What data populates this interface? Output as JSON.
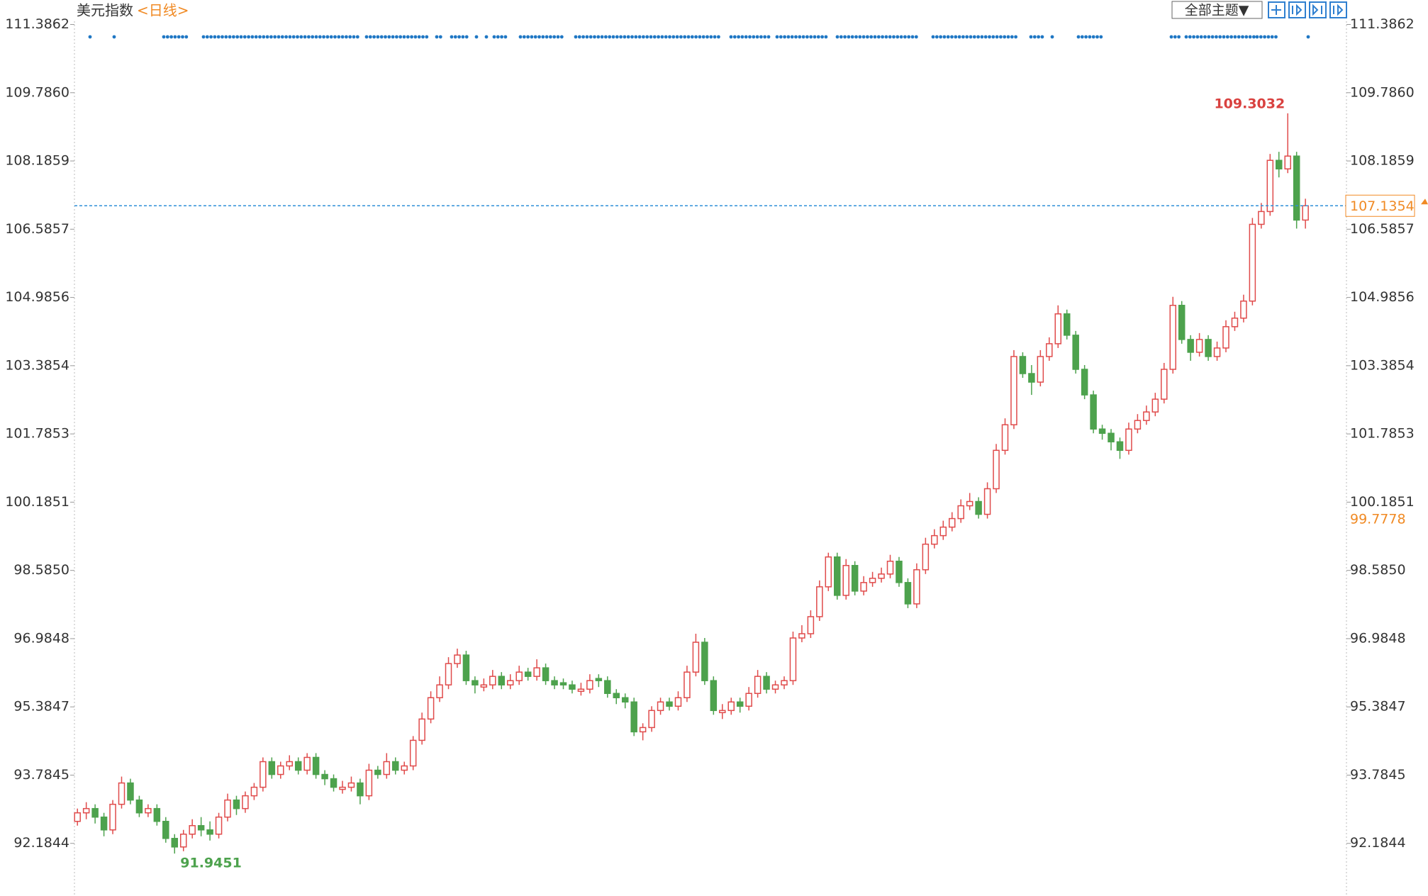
{
  "chart_data": {
    "type": "candlestick",
    "title": "美元指数",
    "period": "<日线>",
    "theme_button": "全部主题▼",
    "up_color": "#e04b4b",
    "down_color": "#4da24d",
    "ylim": [
      90.95,
      111.96
    ],
    "yticks": [
      92.1844,
      93.7845,
      95.3847,
      96.9848,
      98.585,
      {
        "value": 98.585,
        "label": "98.5850"
      },
      100.1851,
      101.7853,
      103.3854,
      104.9856,
      106.5857,
      108.1859,
      {
        "value": 109.786,
        "label": "109.7860"
      },
      111.3862
    ],
    "current_price": 107.1354,
    "reference_price": 99.7778,
    "max_price": 109.3032,
    "min_price": 91.9451,
    "ohlc": [
      [
        92.7,
        93.0,
        92.6,
        92.9
      ],
      [
        92.9,
        93.15,
        92.75,
        93.0
      ],
      [
        93.0,
        93.1,
        92.65,
        92.8
      ],
      [
        92.8,
        92.9,
        92.35,
        92.5
      ],
      [
        92.5,
        93.2,
        92.4,
        93.1
      ],
      [
        93.1,
        93.75,
        93.0,
        93.6
      ],
      [
        93.6,
        93.7,
        93.1,
        93.2
      ],
      [
        93.2,
        93.3,
        92.8,
        92.9
      ],
      [
        92.9,
        93.1,
        92.8,
        93.0
      ],
      [
        93.0,
        93.1,
        92.6,
        92.7
      ],
      [
        92.7,
        92.8,
        92.2,
        92.3
      ],
      [
        92.3,
        92.4,
        91.9451,
        92.1
      ],
      [
        92.1,
        92.5,
        92.0,
        92.4
      ],
      [
        92.4,
        92.75,
        92.3,
        92.6
      ],
      [
        92.6,
        92.8,
        92.35,
        92.5
      ],
      [
        92.5,
        92.7,
        92.25,
        92.4
      ],
      [
        92.4,
        92.9,
        92.3,
        92.8
      ],
      [
        92.8,
        93.35,
        92.7,
        93.2
      ],
      [
        93.2,
        93.3,
        92.85,
        93.0
      ],
      [
        93.0,
        93.4,
        92.9,
        93.3
      ],
      [
        93.3,
        93.6,
        93.2,
        93.5
      ],
      [
        93.5,
        94.2,
        93.4,
        94.1
      ],
      [
        94.1,
        94.2,
        93.7,
        93.8
      ],
      [
        93.8,
        94.1,
        93.7,
        94.0
      ],
      [
        94.0,
        94.25,
        93.9,
        94.1
      ],
      [
        94.1,
        94.2,
        93.8,
        93.9
      ],
      [
        93.9,
        94.3,
        93.8,
        94.2
      ],
      [
        94.2,
        94.3,
        93.7,
        93.8
      ],
      [
        93.8,
        93.9,
        93.55,
        93.7
      ],
      [
        93.7,
        93.8,
        93.4,
        93.5
      ],
      [
        93.45,
        93.65,
        93.35,
        93.5
      ],
      [
        93.5,
        93.75,
        93.4,
        93.6
      ],
      [
        93.6,
        93.7,
        93.1,
        93.3
      ],
      [
        93.3,
        94.05,
        93.2,
        93.9
      ],
      [
        93.9,
        94.0,
        93.7,
        93.8
      ],
      [
        93.8,
        94.3,
        93.7,
        94.1
      ],
      [
        94.1,
        94.2,
        93.8,
        93.9
      ],
      [
        93.9,
        94.1,
        93.8,
        94.0
      ],
      [
        94.0,
        94.7,
        93.9,
        94.6
      ],
      [
        94.6,
        95.25,
        94.5,
        95.1
      ],
      [
        95.1,
        95.75,
        95.0,
        95.6
      ],
      [
        95.6,
        96.1,
        95.5,
        95.9
      ],
      [
        95.9,
        96.55,
        95.8,
        96.4
      ],
      [
        96.4,
        96.75,
        96.3,
        96.6
      ],
      [
        96.6,
        96.7,
        95.9,
        96.0
      ],
      [
        96.0,
        96.1,
        95.7,
        95.9
      ],
      [
        95.85,
        96.05,
        95.75,
        95.9
      ],
      [
        95.9,
        96.25,
        95.8,
        96.1
      ],
      [
        96.1,
        96.2,
        95.8,
        95.9
      ],
      [
        95.9,
        96.15,
        95.8,
        96.0
      ],
      [
        96.0,
        96.35,
        95.9,
        96.2
      ],
      [
        96.2,
        96.3,
        96.0,
        96.1
      ],
      [
        96.1,
        96.5,
        96.0,
        96.3
      ],
      [
        96.3,
        96.4,
        95.9,
        96.0
      ],
      [
        96.0,
        96.1,
        95.8,
        95.9
      ],
      [
        95.95,
        96.05,
        95.8,
        95.9
      ],
      [
        95.9,
        96.0,
        95.7,
        95.8
      ],
      [
        95.75,
        95.95,
        95.65,
        95.8
      ],
      [
        95.8,
        96.15,
        95.7,
        96.0
      ],
      [
        96.05,
        96.15,
        95.85,
        96.0
      ],
      [
        96.0,
        96.1,
        95.6,
        95.7
      ],
      [
        95.7,
        95.8,
        95.45,
        95.6
      ],
      [
        95.6,
        95.7,
        95.35,
        95.5
      ],
      [
        95.5,
        95.6,
        94.7,
        94.8
      ],
      [
        94.8,
        95.0,
        94.6,
        94.9
      ],
      [
        94.9,
        95.4,
        94.8,
        95.3
      ],
      [
        95.3,
        95.6,
        95.2,
        95.5
      ],
      [
        95.5,
        95.6,
        95.3,
        95.4
      ],
      [
        95.4,
        95.75,
        95.3,
        95.6
      ],
      [
        95.6,
        96.35,
        95.5,
        96.2
      ],
      [
        96.2,
        97.1,
        96.1,
        96.9
      ],
      [
        96.9,
        97.0,
        95.9,
        96.0
      ],
      [
        96.0,
        96.1,
        95.2,
        95.3
      ],
      [
        95.25,
        95.45,
        95.1,
        95.3
      ],
      [
        95.3,
        95.6,
        95.2,
        95.5
      ],
      [
        95.5,
        95.6,
        95.25,
        95.4
      ],
      [
        95.4,
        95.85,
        95.3,
        95.7
      ],
      [
        95.7,
        96.25,
        95.6,
        96.1
      ],
      [
        96.1,
        96.2,
        95.7,
        95.8
      ],
      [
        95.8,
        96.0,
        95.7,
        95.9
      ],
      [
        95.9,
        96.1,
        95.8,
        96.0
      ],
      [
        96.0,
        97.15,
        95.9,
        97.0
      ],
      [
        97.0,
        97.3,
        96.9,
        97.1
      ],
      [
        97.1,
        97.65,
        97.0,
        97.5
      ],
      [
        97.5,
        98.35,
        97.4,
        98.2
      ],
      [
        98.2,
        99.0,
        98.1,
        98.9
      ],
      [
        98.9,
        99.0,
        97.9,
        98.0
      ],
      [
        98.0,
        98.85,
        97.9,
        98.7
      ],
      [
        98.7,
        98.8,
        98.0,
        98.1
      ],
      [
        98.1,
        98.45,
        98.0,
        98.3
      ],
      [
        98.3,
        98.55,
        98.2,
        98.4
      ],
      [
        98.4,
        98.65,
        98.3,
        98.5
      ],
      [
        98.5,
        98.95,
        98.4,
        98.8
      ],
      [
        98.8,
        98.9,
        98.2,
        98.3
      ],
      [
        98.3,
        98.4,
        97.7,
        97.8
      ],
      [
        97.8,
        98.75,
        97.7,
        98.6
      ],
      [
        98.6,
        99.35,
        98.5,
        99.2
      ],
      [
        99.2,
        99.55,
        99.1,
        99.4
      ],
      [
        99.4,
        99.75,
        99.3,
        99.6
      ],
      [
        99.6,
        99.95,
        99.5,
        99.8
      ],
      [
        99.8,
        100.25,
        99.7,
        100.1
      ],
      [
        100.1,
        100.4,
        100.0,
        100.2
      ],
      [
        100.2,
        100.3,
        99.8,
        99.9
      ],
      [
        99.9,
        100.65,
        99.8,
        100.5
      ],
      [
        100.5,
        101.55,
        100.4,
        101.4
      ],
      [
        101.4,
        102.15,
        101.3,
        102.0
      ],
      [
        102.0,
        103.75,
        101.9,
        103.6
      ],
      [
        103.6,
        103.7,
        103.1,
        103.2
      ],
      [
        103.2,
        103.4,
        102.7,
        103.0
      ],
      [
        103.0,
        103.75,
        102.9,
        103.6
      ],
      [
        103.6,
        104.05,
        103.5,
        103.9
      ],
      [
        103.9,
        104.8,
        103.8,
        104.6
      ],
      [
        104.6,
        104.7,
        104.0,
        104.1
      ],
      [
        104.1,
        104.2,
        103.2,
        103.3
      ],
      [
        103.3,
        103.4,
        102.6,
        102.7
      ],
      [
        102.7,
        102.8,
        101.8,
        101.9
      ],
      [
        101.9,
        102.0,
        101.65,
        101.8
      ],
      [
        101.8,
        101.9,
        101.4,
        101.6
      ],
      [
        101.6,
        101.7,
        101.2,
        101.4
      ],
      [
        101.4,
        102.05,
        101.3,
        101.9
      ],
      [
        101.9,
        102.25,
        101.8,
        102.1
      ],
      [
        102.1,
        102.45,
        102.0,
        102.3
      ],
      [
        102.3,
        102.75,
        102.2,
        102.6
      ],
      [
        102.6,
        103.45,
        102.5,
        103.3
      ],
      [
        103.3,
        105.0,
        103.2,
        104.8
      ],
      [
        104.8,
        104.9,
        103.9,
        104.0
      ],
      [
        104.0,
        104.1,
        103.5,
        103.7
      ],
      [
        103.7,
        104.15,
        103.6,
        104.0
      ],
      [
        104.0,
        104.1,
        103.5,
        103.6
      ],
      [
        103.6,
        103.95,
        103.5,
        103.8
      ],
      [
        103.8,
        104.45,
        103.7,
        104.3
      ],
      [
        104.3,
        104.65,
        104.2,
        104.5
      ],
      [
        104.5,
        105.05,
        104.4,
        104.9
      ],
      [
        104.9,
        106.85,
        104.8,
        106.7
      ],
      [
        106.7,
        107.2,
        106.6,
        107.0
      ],
      [
        107.0,
        108.35,
        106.9,
        108.2
      ],
      [
        108.2,
        108.4,
        107.8,
        108.0
      ],
      [
        108.0,
        109.3032,
        107.9,
        108.3
      ],
      [
        108.3,
        108.4,
        106.6,
        106.8
      ],
      [
        106.8,
        107.3,
        106.6,
        107.1354
      ]
    ]
  }
}
